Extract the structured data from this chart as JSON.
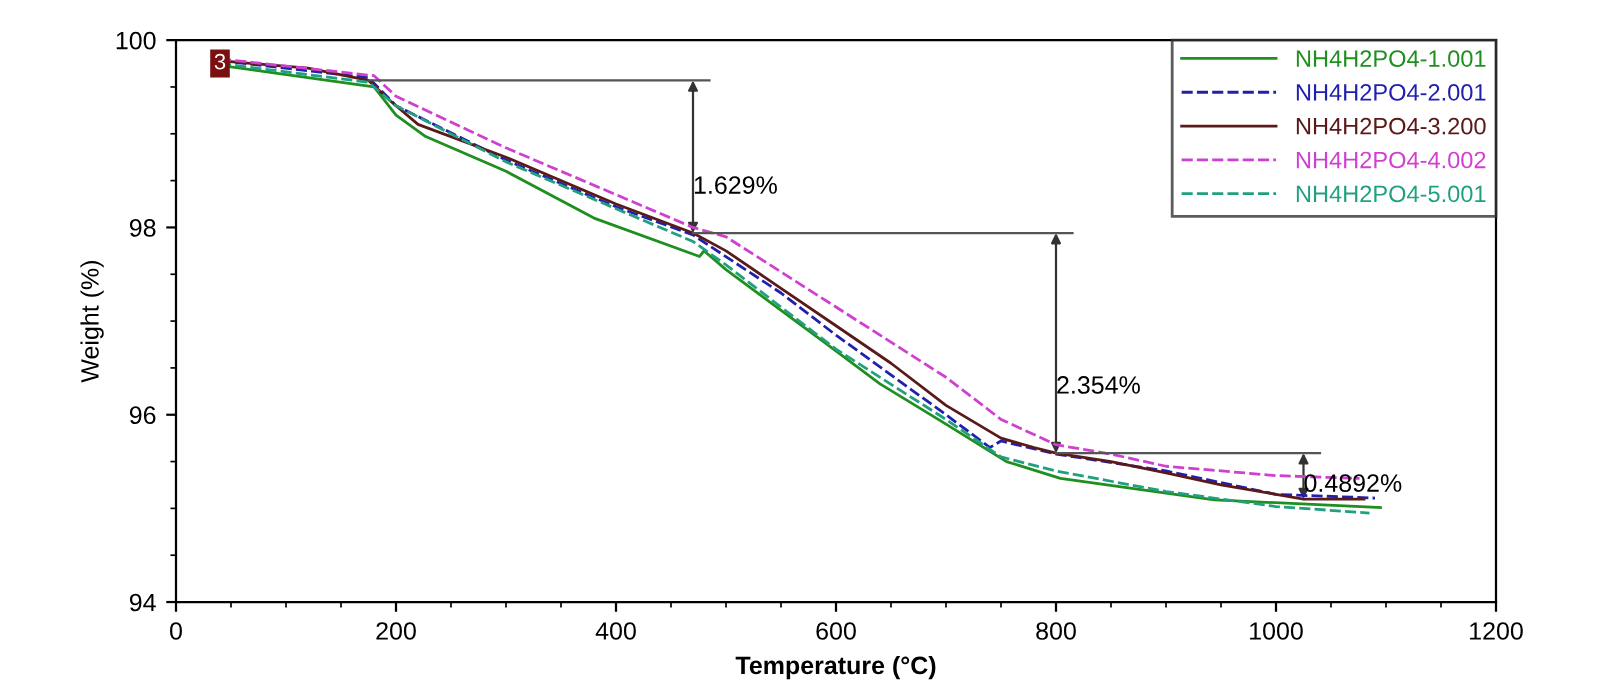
{
  "chart_data": {
    "type": "line",
    "xlabel": "Temperature (°C)",
    "ylabel": "Weight (%)",
    "xlim": [
      0,
      1200
    ],
    "xticks": [
      0,
      200,
      400,
      600,
      800,
      1000,
      1200
    ],
    "ylim": [
      94,
      100
    ],
    "yticks": [
      94,
      96,
      98,
      100
    ],
    "grid": false,
    "legend": "top right",
    "marker": "none",
    "annotations": [
      {
        "text": "3",
        "x": 40,
        "y": 99.75
      },
      {
        "text": "1.629%",
        "x": 470,
        "y": 97.94
      },
      {
        "text": "2.354%",
        "x": 800,
        "y": 95.59
      },
      {
        "text": "0.4892%",
        "x": 1025,
        "y": 95.1
      }
    ],
    "series": [
      {
        "name": "NH4H2PO4-1.001",
        "color": "#1f8f1f",
        "line_style": "solid",
        "x": [
          40,
          180,
          200,
          227,
          300,
          380,
          476,
          480,
          500,
          591,
          640,
          700,
          755,
          804,
          944,
          1095
        ],
        "values": [
          99.73,
          99.5,
          99.2,
          98.97,
          98.6,
          98.1,
          97.69,
          97.75,
          97.55,
          96.76,
          96.33,
          95.9,
          95.5,
          95.32,
          95.09,
          95.01
        ]
      },
      {
        "name": "NH4H2PO4-2.001",
        "color": "#2020b0",
        "line_style": "dashed",
        "x": [
          40,
          175,
          200,
          300,
          400,
          470,
          550,
          600,
          700,
          740,
          750,
          800,
          900,
          1000,
          1090
        ],
        "values": [
          99.78,
          99.6,
          99.3,
          98.72,
          98.22,
          97.92,
          97.3,
          96.85,
          96.0,
          95.65,
          95.72,
          95.58,
          95.4,
          95.15,
          95.11
        ]
      },
      {
        "name": "NH4H2PO4-3.200",
        "color": "#5a1a1a",
        "line_style": "solid",
        "x": [
          40,
          120,
          175,
          195,
          220,
          300,
          400,
          470,
          500,
          550,
          600,
          650,
          700,
          750,
          780,
          800,
          850,
          900,
          950,
          1000,
          1025,
          1080
        ],
        "values": [
          99.78,
          99.7,
          99.57,
          99.35,
          99.1,
          98.75,
          98.25,
          97.94,
          97.75,
          97.35,
          96.95,
          96.55,
          96.1,
          95.75,
          95.65,
          95.59,
          95.5,
          95.38,
          95.25,
          95.15,
          95.1,
          95.1
        ]
      },
      {
        "name": "NH4H2PO4-4.002",
        "color": "#d040d0",
        "line_style": "dashed",
        "x": [
          40,
          180,
          200,
          300,
          400,
          430,
          470,
          500,
          600,
          700,
          750,
          800,
          850,
          900,
          1000,
          1076
        ],
        "values": [
          99.8,
          99.62,
          99.4,
          98.85,
          98.35,
          98.2,
          98.0,
          97.9,
          97.15,
          96.4,
          95.95,
          95.68,
          95.58,
          95.45,
          95.35,
          95.32
        ]
      },
      {
        "name": "NH4H2PO4-5.001",
        "color": "#20a080",
        "line_style": "dashed",
        "x": [
          40,
          175,
          200,
          300,
          400,
          470,
          500,
          600,
          700,
          750,
          800,
          900,
          1000,
          1085
        ],
        "values": [
          99.75,
          99.55,
          99.3,
          98.7,
          98.2,
          97.85,
          97.6,
          96.7,
          95.95,
          95.55,
          95.4,
          95.18,
          95.02,
          94.95
        ]
      }
    ]
  }
}
